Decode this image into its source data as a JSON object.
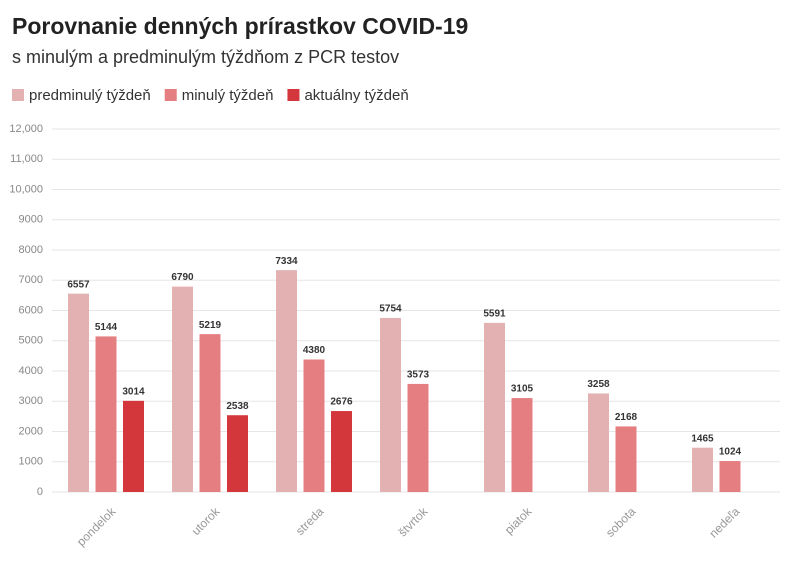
{
  "chart_data": {
    "type": "bar",
    "title": "Porovnanie denných prírastkov COVID-19",
    "subtitle": "s minulým a predminulým týždňom z PCR testov",
    "categories": [
      "pondelok",
      "utorok",
      "streda",
      "štvrtok",
      "piatok",
      "sobota",
      "nedeľa"
    ],
    "series": [
      {
        "name": "predminulý týždeň",
        "color": "#e3b1b1",
        "values": [
          6557,
          6790,
          7334,
          5754,
          5591,
          3258,
          1465
        ]
      },
      {
        "name": "minulý týždeň",
        "color": "#e57e80",
        "values": [
          5144,
          5219,
          4380,
          3573,
          3105,
          2168,
          1024
        ]
      },
      {
        "name": "aktuálny týždeň",
        "color": "#d3363b",
        "values": [
          3014,
          2538,
          2676,
          null,
          null,
          null,
          null
        ]
      }
    ],
    "ylim": [
      0,
      12000
    ],
    "yticks": [
      0,
      1000,
      2000,
      3000,
      4000,
      5000,
      6000,
      7000,
      8000,
      9000,
      {
        "value": 10000,
        "label": "10,000"
      },
      {
        "value": 11000,
        "label": "11,000"
      },
      {
        "value": 12000,
        "label": "12,000"
      }
    ],
    "grid": true
  }
}
